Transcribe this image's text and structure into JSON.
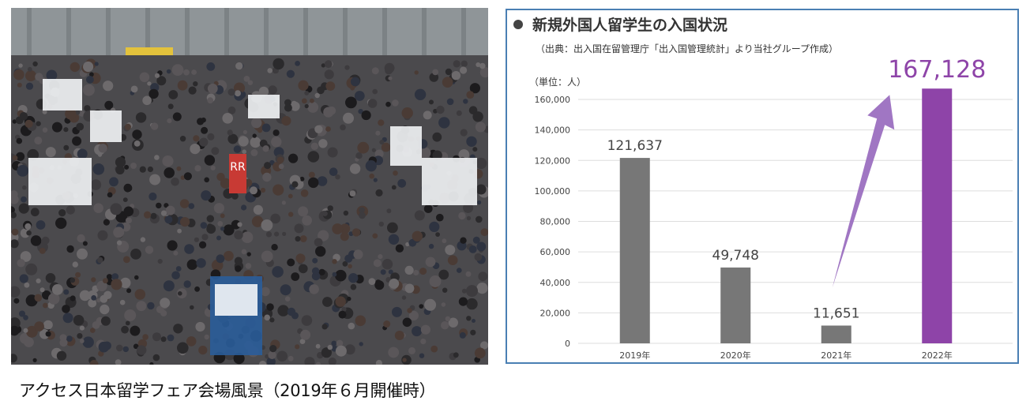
{
  "photo": {
    "description_icon": "crowd-photo-icon",
    "booth_sign_text": "RR"
  },
  "caption": "アクセス日本留学フェア会場風景（2019年６月開催時）",
  "panel": {
    "title": "新規外国人留学生の入国状況",
    "source": "（出典：出入国在留管理庁「出入国管理統計」より当社グループ作成）",
    "unit": "（単位：人）"
  },
  "colors": {
    "bar_default": "#777777",
    "bar_highlight": "#8e44a8",
    "arrow": "#9b6fc0",
    "frame": "#4a7fb3",
    "grid": "#dddddd"
  },
  "chart_data": {
    "type": "bar",
    "title": "新規外国人留学生の入国状況",
    "ylabel": "（単位：人）",
    "categories": [
      "2019年",
      "2020年",
      "2021年",
      "2022年"
    ],
    "values": [
      121637,
      49748,
      11651,
      167128
    ],
    "data_labels": [
      "121,637",
      "49,748",
      "11,651",
      "167,128"
    ],
    "highlight_index": 3,
    "ylim": [
      0,
      160000
    ],
    "yticks": [
      0,
      20000,
      40000,
      60000,
      80000,
      100000,
      120000,
      140000,
      160000
    ],
    "ytick_labels": [
      "0",
      "20,000",
      "40,000",
      "60,000",
      "80,000",
      "100,000",
      "120,000",
      "140,000",
      "160,000"
    ],
    "grid": true,
    "annotation": "arrow from 2021年 rising to 2022年"
  }
}
